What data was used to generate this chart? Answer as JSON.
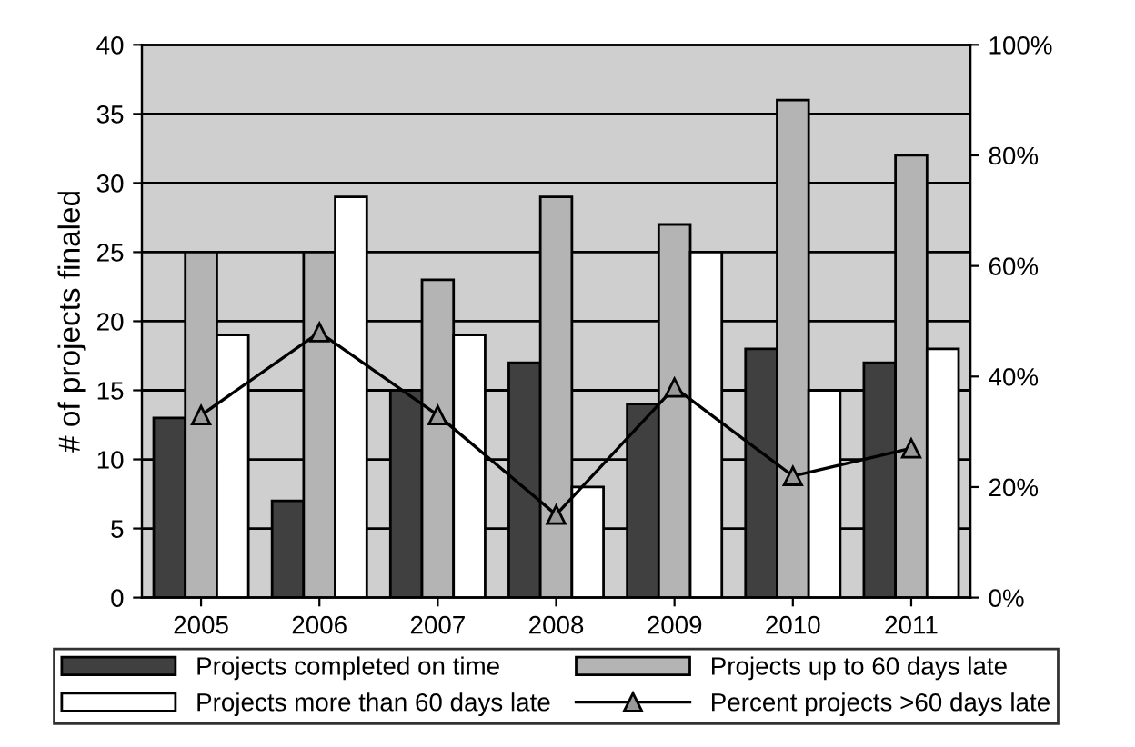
{
  "chart_data": {
    "type": "bar",
    "ylabel": "# of projects finaled",
    "categories": [
      "2005",
      "2006",
      "2007",
      "2008",
      "2009",
      "2010",
      "2011"
    ],
    "series": [
      {
        "name": "Projects completed on time",
        "color": "#404040",
        "values": [
          13,
          7,
          15,
          17,
          14,
          18,
          17
        ]
      },
      {
        "name": "Projects up to 60 days late",
        "color": "#b4b4b4",
        "values": [
          25,
          25,
          23,
          29,
          27,
          36,
          32
        ]
      },
      {
        "name": "Projects more than 60 days late",
        "color": "#ffffff",
        "values": [
          19,
          29,
          19,
          8,
          25,
          15,
          18
        ]
      },
      {
        "name": "Percent projects >60 days late",
        "type": "line",
        "axis": "y2",
        "color": "#000000",
        "marker": "triangle",
        "values": [
          33,
          48,
          33,
          15,
          38,
          22,
          27
        ]
      }
    ],
    "ylim": [
      0,
      40
    ],
    "yticks": [
      0,
      5,
      10,
      15,
      20,
      25,
      30,
      35,
      40
    ],
    "y2lim": [
      0,
      100
    ],
    "y2ticks": [
      {
        "value": 0,
        "label": "0%"
      },
      {
        "value": 20,
        "label": "20%"
      },
      {
        "value": 40,
        "label": "40%"
      },
      {
        "value": 60,
        "label": "60%"
      },
      {
        "value": 80,
        "label": "80%"
      },
      {
        "value": 100,
        "label": "100%"
      }
    ],
    "grid": "y",
    "legend": "bottom"
  }
}
